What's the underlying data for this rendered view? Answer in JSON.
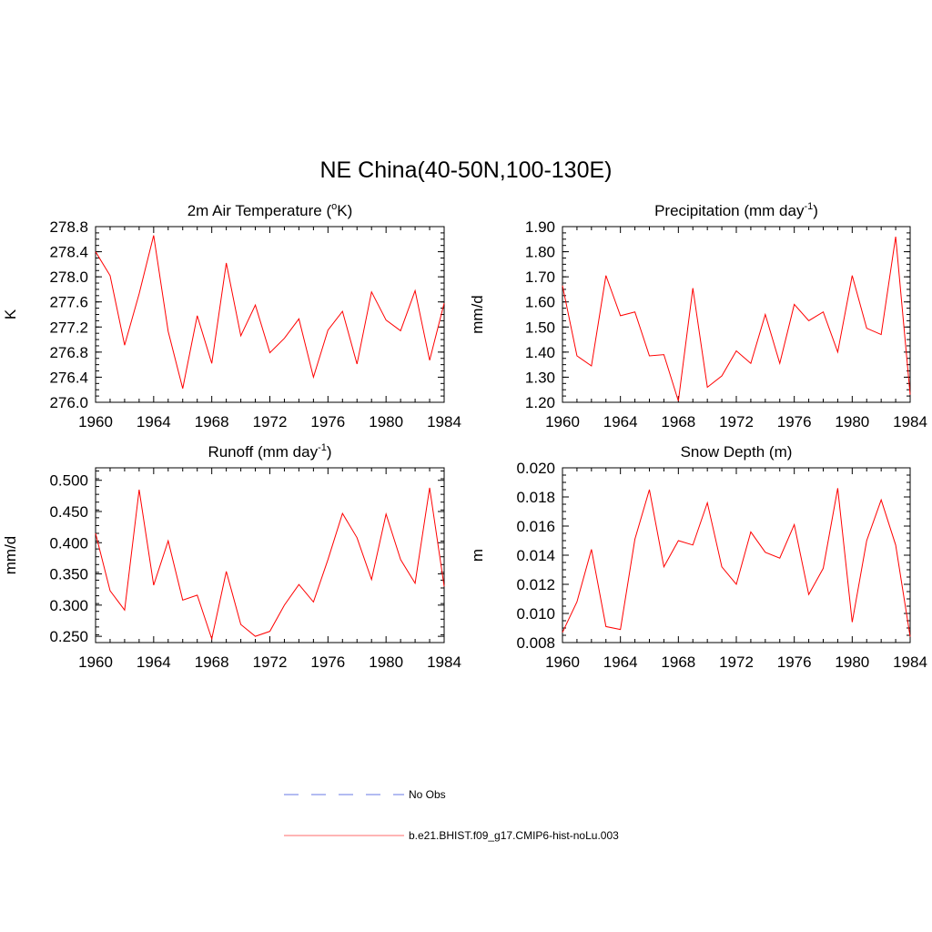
{
  "figure": {
    "title": "NE China(40-50N,100-130E)"
  },
  "legend": {
    "entries": [
      {
        "label": "No Obs",
        "color": "#9aa6ee",
        "style": "dashed"
      },
      {
        "label": "b.e21.BHIST.f09_g17.CMIP6-hist-noLu.003",
        "color": "#ff0000",
        "style": "solid"
      }
    ]
  },
  "chart_data": [
    {
      "type": "line",
      "title_main": "2m Air Temperature (",
      "title_sup": "o",
      "title_end": "K)",
      "ylabel": "K",
      "xlim": [
        1960,
        1984
      ],
      "ylim": [
        276.0,
        278.8
      ],
      "xticks": [
        1960,
        1964,
        1968,
        1972,
        1976,
        1980,
        1984
      ],
      "xtick_labels": [
        "1960",
        "1964",
        "1968",
        "1972",
        "1976",
        "1980",
        "1984"
      ],
      "yticks": [
        276.0,
        276.4,
        276.8,
        277.2,
        277.6,
        278.0,
        278.4,
        278.8
      ],
      "ytick_labels": [
        "276.0",
        "276.4",
        "276.8",
        "277.2",
        "277.6",
        "278.0",
        "278.4",
        "278.8"
      ],
      "yminor_step": 0.1,
      "series": [
        {
          "color": "#ff0000",
          "x": [
            1960,
            1961,
            1962,
            1963,
            1964,
            1965,
            1966,
            1967,
            1968,
            1969,
            1970,
            1971,
            1972,
            1973,
            1974,
            1975,
            1976,
            1977,
            1978,
            1979,
            1980,
            1981,
            1982,
            1983,
            1984
          ],
          "values": [
            278.4,
            278.02,
            276.91,
            277.73,
            278.66,
            277.13,
            276.22,
            277.38,
            276.62,
            278.22,
            277.06,
            277.55,
            276.79,
            277.02,
            277.33,
            276.4,
            277.15,
            277.45,
            276.61,
            277.76,
            277.31,
            277.14,
            277.78,
            276.67,
            277.58
          ]
        }
      ]
    },
    {
      "type": "line",
      "title_main": "Precipitation (mm day",
      "title_sup": "-1",
      "title_end": ")",
      "ylabel": "mm/d",
      "xlim": [
        1960,
        1984
      ],
      "ylim": [
        1.2,
        1.9
      ],
      "xticks": [
        1960,
        1964,
        1968,
        1972,
        1976,
        1980,
        1984
      ],
      "xtick_labels": [
        "1960",
        "1964",
        "1968",
        "1972",
        "1976",
        "1980",
        "1984"
      ],
      "yticks": [
        1.2,
        1.3,
        1.4,
        1.5,
        1.6,
        1.7,
        1.8,
        1.9
      ],
      "ytick_labels": [
        "1.20",
        "1.30",
        "1.40",
        "1.50",
        "1.60",
        "1.70",
        "1.80",
        "1.90"
      ],
      "yminor_step": 0.025,
      "series": [
        {
          "color": "#ff0000",
          "x": [
            1960,
            1961,
            1962,
            1963,
            1964,
            1965,
            1966,
            1967,
            1968,
            1969,
            1970,
            1971,
            1972,
            1973,
            1974,
            1975,
            1976,
            1977,
            1978,
            1979,
            1980,
            1981,
            1982,
            1983,
            1984
          ],
          "values": [
            1.665,
            1.385,
            1.345,
            1.705,
            1.545,
            1.56,
            1.385,
            1.39,
            1.205,
            1.655,
            1.26,
            1.305,
            1.405,
            1.355,
            1.55,
            1.355,
            1.59,
            1.525,
            1.56,
            1.4,
            1.705,
            1.495,
            1.47,
            1.86,
            1.23
          ]
        }
      ]
    },
    {
      "type": "line",
      "title_main": "Runoff (mm day",
      "title_sup": "-1",
      "title_end": ")",
      "ylabel": "mm/d",
      "xlim": [
        1960,
        1984
      ],
      "ylim": [
        0.24,
        0.52
      ],
      "xticks": [
        1960,
        1964,
        1968,
        1972,
        1976,
        1980,
        1984
      ],
      "xtick_labels": [
        "1960",
        "1964",
        "1968",
        "1972",
        "1976",
        "1980",
        "1984"
      ],
      "yticks": [
        0.25,
        0.3,
        0.35,
        0.4,
        0.45,
        0.5
      ],
      "ytick_labels": [
        "0.250",
        "0.300",
        "0.350",
        "0.400",
        "0.450",
        "0.500"
      ],
      "yminor_step": 0.0125,
      "series": [
        {
          "color": "#ff0000",
          "x": [
            1960,
            1961,
            1962,
            1963,
            1964,
            1965,
            1966,
            1967,
            1968,
            1969,
            1970,
            1971,
            1972,
            1973,
            1974,
            1975,
            1976,
            1977,
            1978,
            1979,
            1980,
            1981,
            1982,
            1983,
            1984
          ],
          "values": [
            0.415,
            0.323,
            0.292,
            0.485,
            0.332,
            0.403,
            0.308,
            0.316,
            0.246,
            0.354,
            0.269,
            0.25,
            0.258,
            0.3,
            0.333,
            0.305,
            0.373,
            0.447,
            0.408,
            0.341,
            0.446,
            0.373,
            0.335,
            0.488,
            0.33
          ]
        }
      ]
    },
    {
      "type": "line",
      "title_main": "Snow Depth (m)",
      "title_sup": "",
      "title_end": "",
      "ylabel": "m",
      "xlim": [
        1960,
        1984
      ],
      "ylim": [
        0.008,
        0.02
      ],
      "xticks": [
        1960,
        1964,
        1968,
        1972,
        1976,
        1980,
        1984
      ],
      "xtick_labels": [
        "1960",
        "1964",
        "1968",
        "1972",
        "1976",
        "1980",
        "1984"
      ],
      "yticks": [
        0.008,
        0.01,
        0.012,
        0.014,
        0.016,
        0.018,
        0.02
      ],
      "ytick_labels": [
        "0.008",
        "0.010",
        "0.012",
        "0.014",
        "0.016",
        "0.018",
        "0.020"
      ],
      "yminor_step": 0.0005,
      "series": [
        {
          "color": "#ff0000",
          "x": [
            1960,
            1961,
            1962,
            1963,
            1964,
            1965,
            1966,
            1967,
            1968,
            1969,
            1970,
            1971,
            1972,
            1973,
            1974,
            1975,
            1976,
            1977,
            1978,
            1979,
            1980,
            1981,
            1982,
            1983,
            1984
          ],
          "values": [
            0.0087,
            0.0108,
            0.0144,
            0.0091,
            0.0089,
            0.0151,
            0.0185,
            0.0132,
            0.015,
            0.0147,
            0.0176,
            0.0132,
            0.012,
            0.0156,
            0.0142,
            0.0138,
            0.0161,
            0.0113,
            0.0131,
            0.0186,
            0.0094,
            0.015,
            0.0178,
            0.0147,
            0.0084
          ]
        }
      ]
    }
  ]
}
